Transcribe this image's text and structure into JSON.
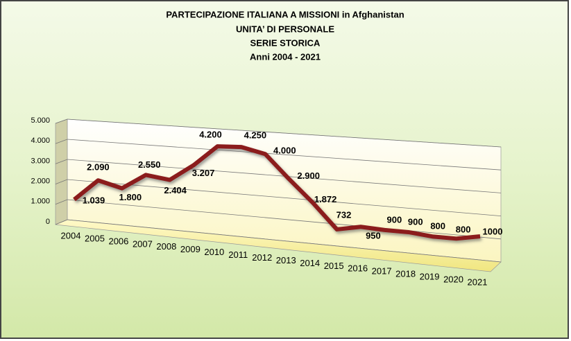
{
  "chart_data": {
    "type": "line",
    "title": "PARTECIPAZIONE ITALIANA A MISSIONI in Afghanistan",
    "subtitle": [
      "UNITA’ DI PERSONALE",
      "SERIE STORICA",
      "Anni 2004 - 2021"
    ],
    "categories": [
      "2004",
      "2005",
      "2006",
      "2007",
      "2008",
      "2009",
      "2010",
      "2011",
      "2012",
      "2013",
      "2014",
      "2015",
      "2016",
      "2017",
      "2018",
      "2019",
      "2020",
      "2021"
    ],
    "values": [
      1039,
      2090,
      1800,
      2550,
      2404,
      3207,
      4200,
      4250,
      4000,
      2900,
      1872,
      732,
      950,
      900,
      900,
      800,
      800,
      1000
    ],
    "value_labels": [
      "1.039",
      "2.090",
      "1.800",
      "2.550",
      "2.404",
      "3.207",
      "4.200",
      "4.250",
      "4.000",
      "2.900",
      "1.872",
      "732",
      "950",
      "900",
      "900",
      "800",
      "800",
      "1000"
    ],
    "color": "#8b1a1a",
    "ylim": [
      0,
      5000
    ],
    "yticks": [
      0,
      {
        "value": 1000,
        "label": "1.000"
      },
      {
        "value": 2000,
        "label": "2.000"
      },
      {
        "value": 3000,
        "label": "3.000"
      },
      {
        "value": 4000,
        "label": "4.000"
      },
      {
        "value": 5000,
        "label": "5.000"
      }
    ],
    "grid": true
  }
}
